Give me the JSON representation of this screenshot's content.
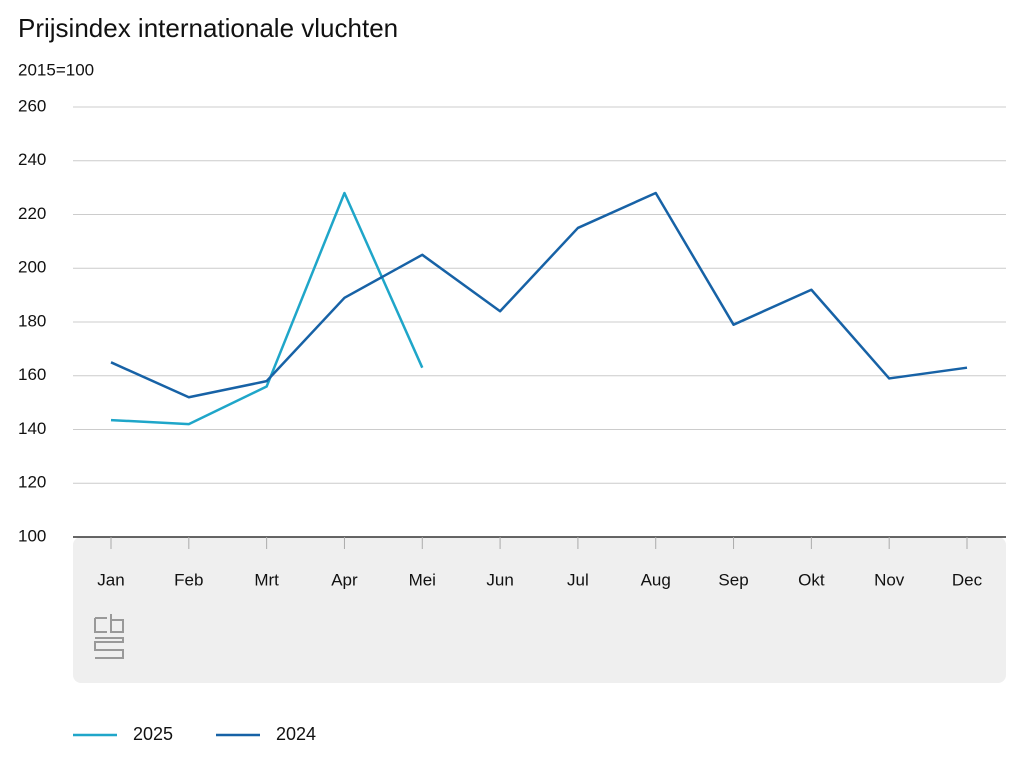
{
  "chart_data": {
    "type": "line",
    "title": "Prijsindex internationale vluchten",
    "subtitle": "2015=100",
    "categories": [
      "Jan",
      "Feb",
      "Mrt",
      "Apr",
      "Mei",
      "Jun",
      "Jul",
      "Aug",
      "Sep",
      "Okt",
      "Nov",
      "Dec"
    ],
    "series": [
      {
        "name": "2025",
        "color": "#1fa6c9",
        "values": [
          143.5,
          142,
          156,
          228,
          163,
          null,
          null,
          null,
          null,
          null,
          null,
          null
        ]
      },
      {
        "name": "2024",
        "color": "#1762a6",
        "values": [
          165,
          152,
          158,
          189,
          205,
          184,
          215,
          228,
          179,
          192,
          159,
          163
        ]
      }
    ],
    "ylim": [
      100,
      260
    ],
    "yticks": [
      100,
      120,
      140,
      160,
      180,
      200,
      220,
      240,
      260
    ],
    "grid": true
  }
}
